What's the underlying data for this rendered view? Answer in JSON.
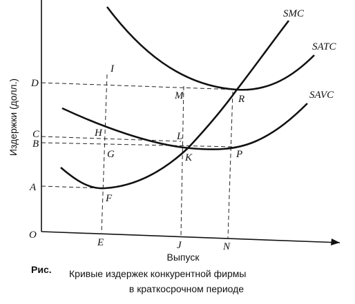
{
  "axes": {
    "y_label": "Издержки (долл.)",
    "x_label": "Выпуск",
    "origin": "O"
  },
  "y_points": [
    "A",
    "B",
    "C",
    "D"
  ],
  "x_points": [
    "E",
    "J",
    "N"
  ],
  "curves": [
    "SMC",
    "SATC",
    "SAVC"
  ],
  "points": [
    "I",
    "H",
    "G",
    "F",
    "M",
    "L",
    "K",
    "R",
    "P"
  ],
  "caption": {
    "prefix": "Рис.",
    "line1": "Кривые издержек конкурентной фирмы",
    "line2": "в краткосрочном периоде"
  }
}
